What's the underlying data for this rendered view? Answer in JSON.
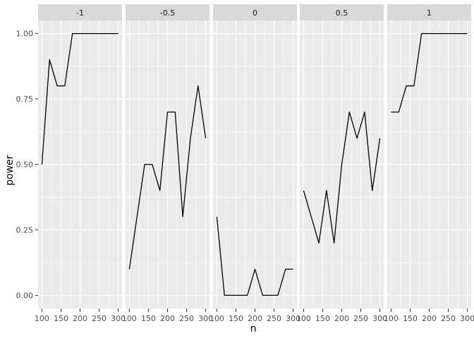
{
  "chart_data": {
    "type": "line",
    "layout": "facet-wrap",
    "xlabel": "n",
    "ylabel": "power",
    "xlim": [
      100,
      300
    ],
    "ylim": [
      0,
      1
    ],
    "x_ticks": [
      100,
      150,
      200,
      250,
      300
    ],
    "x_tick_labels": [
      "100",
      "150",
      "200",
      "250",
      "300"
    ],
    "y_ticks": [
      0,
      0.25,
      0.5,
      0.75,
      1
    ],
    "y_tick_labels": [
      "0.00",
      "0.25",
      "0.50",
      "0.75",
      "1.00"
    ],
    "grid": true,
    "colors": {
      "panel_bg": "#ebebeb",
      "strip_bg": "#d9d9d9",
      "grid": "#ffffff",
      "line": "#000000"
    },
    "x": [
      100,
      120,
      140,
      160,
      180,
      200,
      220,
      240,
      260,
      280,
      300
    ],
    "series": [
      {
        "name": "-1",
        "values": [
          0.5,
          0.9,
          0.8,
          0.8,
          1.0,
          1.0,
          1.0,
          1.0,
          1.0,
          1.0,
          1.0
        ]
      },
      {
        "name": "-0.5",
        "values": [
          0.1,
          0.3,
          0.5,
          0.5,
          0.4,
          0.7,
          0.7,
          0.3,
          0.6,
          0.8,
          0.6
        ]
      },
      {
        "name": "0",
        "values": [
          0.3,
          0.0,
          0.0,
          0.0,
          0.0,
          0.1,
          0.0,
          0.0,
          0.0,
          0.1,
          0.1
        ]
      },
      {
        "name": "0.5",
        "values": [
          0.4,
          0.3,
          0.2,
          0.4,
          0.2,
          0.5,
          0.7,
          0.6,
          0.7,
          0.4,
          0.6
        ]
      },
      {
        "name": "1",
        "values": [
          0.7,
          0.7,
          0.8,
          0.8,
          1.0,
          1.0,
          1.0,
          1.0,
          1.0,
          1.0,
          1.0
        ]
      }
    ]
  }
}
